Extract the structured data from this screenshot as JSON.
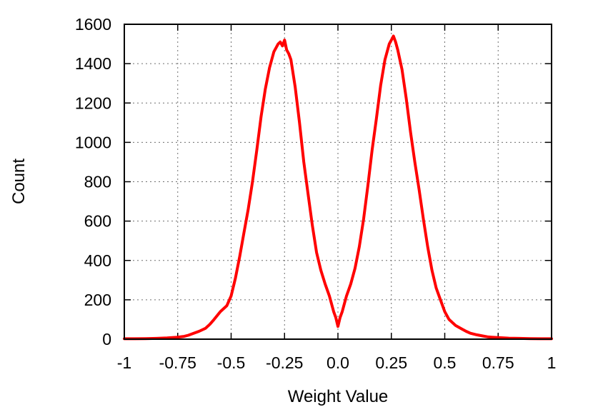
{
  "chart_data": {
    "type": "line",
    "title": "",
    "xlabel": "Weight Value",
    "ylabel": "Count",
    "xlim": [
      -1,
      1
    ],
    "ylim": [
      0,
      1600
    ],
    "grid": true,
    "x_ticks": [
      "-1",
      "-0.75",
      "-0.5",
      "-0.25",
      "0.0",
      "0.25",
      "0.5",
      "0.75",
      "1"
    ],
    "x_tick_values": [
      -1,
      -0.75,
      -0.5,
      -0.25,
      0,
      0.25,
      0.5,
      0.75,
      1
    ],
    "y_ticks": [
      "0",
      "200",
      "400",
      "600",
      "800",
      "1000",
      "1200",
      "1400",
      "1600"
    ],
    "y_tick_values": [
      0,
      200,
      400,
      600,
      800,
      1000,
      1200,
      1400,
      1600
    ],
    "series_color": "#ff0000",
    "series": [
      {
        "x": [
          -1.0,
          -0.95,
          -0.9,
          -0.85,
          -0.8,
          -0.75,
          -0.72,
          -0.7,
          -0.68,
          -0.65,
          -0.62,
          -0.6,
          -0.58,
          -0.55,
          -0.52,
          -0.5,
          -0.48,
          -0.46,
          -0.44,
          -0.42,
          -0.4,
          -0.38,
          -0.36,
          -0.34,
          -0.32,
          -0.3,
          -0.28,
          -0.27,
          -0.26,
          -0.25,
          -0.24,
          -0.23,
          -0.22,
          -0.2,
          -0.18,
          -0.16,
          -0.14,
          -0.12,
          -0.1,
          -0.08,
          -0.06,
          -0.04,
          -0.02,
          -0.01,
          0.0,
          0.01,
          0.02,
          0.04,
          0.06,
          0.08,
          0.1,
          0.12,
          0.14,
          0.16,
          0.18,
          0.2,
          0.22,
          0.23,
          0.24,
          0.25,
          0.26,
          0.27,
          0.28,
          0.3,
          0.32,
          0.34,
          0.36,
          0.38,
          0.4,
          0.42,
          0.44,
          0.46,
          0.48,
          0.5,
          0.52,
          0.55,
          0.58,
          0.6,
          0.62,
          0.65,
          0.68,
          0.7,
          0.72,
          0.75,
          0.8,
          0.85,
          0.9,
          0.95,
          1.0
        ],
        "y": [
          2,
          2,
          3,
          4,
          6,
          10,
          14,
          20,
          28,
          40,
          55,
          75,
          100,
          140,
          170,
          220,
          310,
          420,
          540,
          660,
          800,
          960,
          1130,
          1270,
          1380,
          1460,
          1500,
          1510,
          1490,
          1520,
          1470,
          1450,
          1420,
          1280,
          1100,
          900,
          740,
          580,
          440,
          350,
          280,
          220,
          140,
          110,
          65,
          110,
          140,
          220,
          280,
          360,
          470,
          610,
          780,
          960,
          1120,
          1290,
          1420,
          1460,
          1500,
          1520,
          1540,
          1510,
          1470,
          1370,
          1220,
          1050,
          900,
          760,
          610,
          470,
          350,
          260,
          200,
          140,
          100,
          70,
          52,
          40,
          30,
          22,
          16,
          12,
          10,
          8,
          5,
          4,
          3,
          2,
          2
        ]
      }
    ]
  }
}
